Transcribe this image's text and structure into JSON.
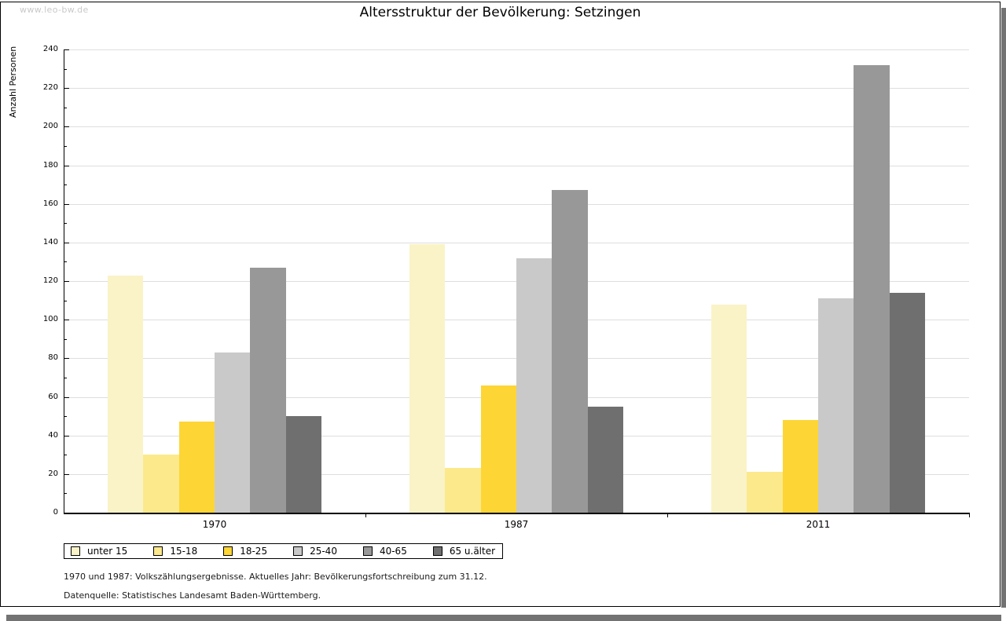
{
  "watermark": "www.leo-bw.de",
  "title": "Altersstruktur der Bevölkerung: Setzingen",
  "chart_data": {
    "type": "bar",
    "title": "Altersstruktur der Bevölkerung: Setzingen",
    "categories": [
      "1970",
      "1987",
      "2011"
    ],
    "series": [
      {
        "name": "unter 15",
        "color": "#FAF3C7",
        "values": [
          123,
          139,
          108
        ]
      },
      {
        "name": "15-18",
        "color": "#FCE98C",
        "values": [
          30,
          23,
          21
        ]
      },
      {
        "name": "18-25",
        "color": "#FDD535",
        "values": [
          47,
          66,
          48
        ]
      },
      {
        "name": "25-40",
        "color": "#C9C9C9",
        "values": [
          83,
          132,
          111
        ]
      },
      {
        "name": "40-65",
        "color": "#989898",
        "values": [
          127,
          167,
          232
        ]
      },
      {
        "name": "65 u.älter",
        "color": "#6F6F6F",
        "values": [
          50,
          55,
          114
        ]
      }
    ],
    "xlabel": "",
    "ylabel": "Anzahl Personen",
    "ylim": [
      0,
      240
    ],
    "ytick_step": 20,
    "yminor_step": 10,
    "grid": true,
    "gridline_color": "#DEDEDE",
    "legend_position": "bottom"
  },
  "footnotes": {
    "line1": "1970 und 1987: Volkszählungsergebnisse. Aktuelles Jahr: Bevölkerungsfortschreibung zum 31.12.",
    "line2": "Datenquelle: Statistisches Landesamt Baden-Württemberg."
  }
}
